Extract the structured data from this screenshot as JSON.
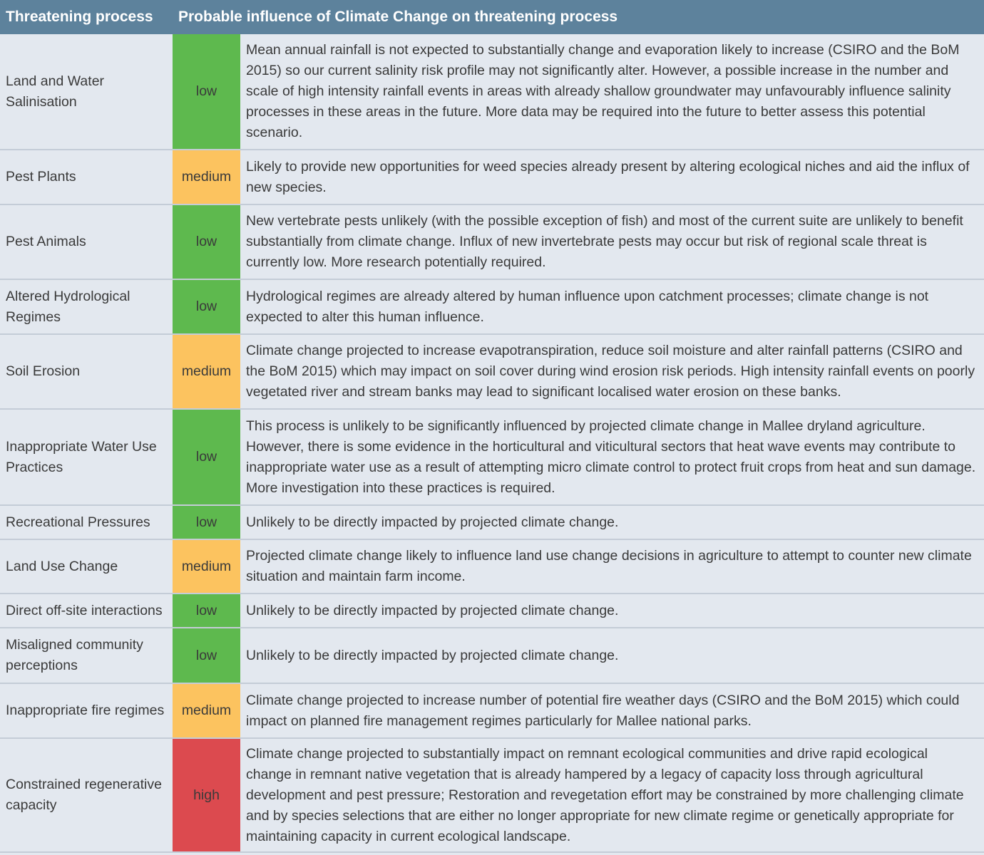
{
  "header": {
    "col_process": "Threatening process",
    "col_influence": "Probable influence of Climate Change on threatening process"
  },
  "colors": {
    "header_bg": "#5d829c",
    "row_bg": "#e3e8ef",
    "low": "#5eb94e",
    "medium": "#fcc35f",
    "high": "#dc4a4f"
  },
  "rows": [
    {
      "process": "Land and Water Salinisation",
      "rating": "low",
      "description": "Mean annual rainfall is not expected to substantially change and evaporation likely to increase (CSIRO and the BoM 2015) so our current salinity risk profile may not significantly alter.  However, a possible increase in the number and scale of high intensity rainfall events in areas with already shallow groundwater may unfavourably influence salinity processes in these areas in the future.  More data may be required into the future to better assess this potential scenario."
    },
    {
      "process": "Pest Plants",
      "rating": "medium",
      "description": "Likely to provide new opportunities for weed species already present by altering ecological niches and aid the influx of new species."
    },
    {
      "process": "Pest Animals",
      "rating": "low",
      "description": "New vertebrate pests unlikely (with the possible exception of fish) and most of the current suite are unlikely to benefit substantially from climate change.  Influx of new invertebrate pests may occur but risk of regional scale threat is currently low.  More research potentially required."
    },
    {
      "process": "Altered Hydrological Regimes",
      "rating": "low",
      "description": "Hydrological regimes are already altered by human influence upon catchment processes; climate change is not expected to alter this human influence."
    },
    {
      "process": "Soil Erosion",
      "rating": "medium",
      "description": "Climate change projected to increase evapotranspiration, reduce soil moisture and alter rainfall patterns (CSIRO and the BoM 2015) which may impact on soil cover during wind erosion risk periods. High intensity rainfall events on poorly vegetated river and stream banks may lead to significant localised water erosion on these banks."
    },
    {
      "process": "Inappropriate Water Use Practices",
      "rating": "low",
      "description": "This process is unlikely to be significantly influenced by projected climate change in Mallee dryland agriculture. However, there is some evidence in the horticultural and viticultural sectors that heat wave events may contribute to inappropriate water use as a result of attempting micro climate control to protect fruit crops from heat and sun damage.  More investigation into these practices is required."
    },
    {
      "process": "Recreational Pressures",
      "rating": "low",
      "description": "Unlikely to be directly impacted by projected climate change."
    },
    {
      "process": "Land Use Change",
      "rating": "medium",
      "description": "Projected climate change likely to influence land use change decisions in agriculture to attempt to counter new climate situation and maintain farm income."
    },
    {
      "process": "Direct off-site interactions",
      "rating": "low",
      "description": "Unlikely to be directly impacted by projected climate change."
    },
    {
      "process": "Misaligned community perceptions",
      "rating": "low",
      "description": "Unlikely to be directly impacted by projected climate change."
    },
    {
      "process": "Inappropriate fire regimes",
      "rating": "medium",
      "description": "Climate change projected to increase number of potential fire weather days (CSIRO and the BoM 2015) which could impact on planned fire management regimes particularly for Mallee national parks."
    },
    {
      "process": "Constrained regenerative capacity",
      "rating": "high",
      "description": "Climate change projected to substantially impact on remnant ecological communities and drive rapid ecological change in remnant native vegetation that is already hampered by a legacy of capacity loss through agricultural development and pest pressure; Restoration and revegetation effort may be constrained by more challenging climate and by species selections that are either no longer appropriate for new climate regime or genetically appropriate for maintaining capacity in current ecological landscape."
    }
  ]
}
